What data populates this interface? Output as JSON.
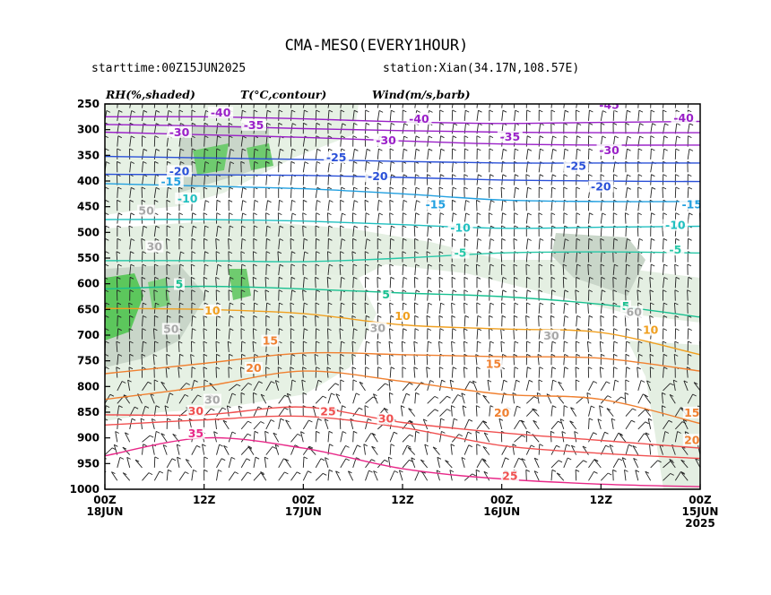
{
  "header": {
    "title": "CMA-MESO(EVERY1HOUR)",
    "starttime": "starttime:00Z15JUN2025",
    "station": "station:Xian(34.17N,108.57E)"
  },
  "legend": {
    "rh": "RH(%,shaded)",
    "temp": "T(°C,contour)",
    "wind": "Wind(m/s,barb)"
  },
  "chart_data": {
    "type": "time-height cross section",
    "y_axis": {
      "ticks": [
        "250",
        "300",
        "350",
        "400",
        "450",
        "500",
        "550",
        "600",
        "650",
        "700",
        "750",
        "800",
        "850",
        "900",
        "950",
        "1000"
      ],
      "range": [
        250,
        1000
      ],
      "reversed": true
    },
    "x_axis": {
      "range_hours": [
        72,
        0
      ],
      "ticks": [
        {
          "hour": 72,
          "line1": "00Z",
          "line2": "18JUN",
          "line3": ""
        },
        {
          "hour": 60,
          "line1": "12Z",
          "line2": "",
          "line3": ""
        },
        {
          "hour": 48,
          "line1": "00Z",
          "line2": "17JUN",
          "line3": ""
        },
        {
          "hour": 36,
          "line1": "12Z",
          "line2": "",
          "line3": ""
        },
        {
          "hour": 24,
          "line1": "00Z",
          "line2": "16JUN",
          "line3": ""
        },
        {
          "hour": 12,
          "line1": "12Z",
          "line2": "",
          "line3": ""
        },
        {
          "hour": 0,
          "line1": "00Z",
          "line2": "15JUN",
          "line3": "2025"
        }
      ]
    },
    "temperature_contours": [
      {
        "level": -40,
        "color": "#9a20c8",
        "points": [
          [
            72,
            275
          ],
          [
            60,
            275
          ],
          [
            48,
            279
          ],
          [
            36,
            285
          ],
          [
            24,
            288
          ],
          [
            12,
            286
          ],
          [
            0,
            284
          ]
        ]
      },
      {
        "level": -35,
        "color": "#9a20c8",
        "points": [
          [
            72,
            290
          ],
          [
            60,
            293
          ],
          [
            48,
            298
          ],
          [
            36,
            302
          ],
          [
            24,
            305
          ],
          [
            12,
            306
          ],
          [
            0,
            306
          ]
        ]
      },
      {
        "level": -30,
        "color": "#9a20c8",
        "points": [
          [
            72,
            305
          ],
          [
            60,
            310
          ],
          [
            48,
            315
          ],
          [
            36,
            322
          ],
          [
            24,
            328
          ],
          [
            12,
            330
          ],
          [
            0,
            330
          ]
        ]
      },
      {
        "level": -25,
        "color": "#2a50d8",
        "points": [
          [
            72,
            352
          ],
          [
            60,
            355
          ],
          [
            48,
            358
          ],
          [
            36,
            362
          ],
          [
            24,
            365
          ],
          [
            12,
            365
          ],
          [
            0,
            365
          ]
        ]
      },
      {
        "level": -20,
        "color": "#2a50d8",
        "points": [
          [
            72,
            387
          ],
          [
            60,
            388
          ],
          [
            48,
            389
          ],
          [
            36,
            393
          ],
          [
            24,
            398
          ],
          [
            12,
            400
          ],
          [
            0,
            401
          ]
        ]
      },
      {
        "level": -15,
        "color": "#22a0e0",
        "points": [
          [
            72,
            405
          ],
          [
            60,
            410
          ],
          [
            48,
            415
          ],
          [
            36,
            425
          ],
          [
            24,
            437
          ],
          [
            12,
            440
          ],
          [
            0,
            440
          ]
        ]
      },
      {
        "level": -10,
        "color": "#20c0c0",
        "points": [
          [
            72,
            475
          ],
          [
            60,
            475
          ],
          [
            48,
            478
          ],
          [
            36,
            485
          ],
          [
            24,
            492
          ],
          [
            12,
            490
          ],
          [
            0,
            488
          ]
        ]
      },
      {
        "level": -5,
        "color": "#28c8a8",
        "points": [
          [
            72,
            555
          ],
          [
            60,
            555
          ],
          [
            48,
            557
          ],
          [
            36,
            550
          ],
          [
            24,
            540
          ],
          [
            12,
            538
          ],
          [
            0,
            540
          ]
        ]
      },
      {
        "level": 5,
        "color": "#18c090",
        "points": [
          [
            72,
            610
          ],
          [
            60,
            605
          ],
          [
            48,
            610
          ],
          [
            36,
            618
          ],
          [
            24,
            625
          ],
          [
            12,
            640
          ],
          [
            0,
            665
          ]
        ]
      },
      {
        "level": 10,
        "color": "#f0a020",
        "points": [
          [
            72,
            648
          ],
          [
            60,
            650
          ],
          [
            48,
            658
          ],
          [
            36,
            680
          ],
          [
            24,
            688
          ],
          [
            12,
            695
          ],
          [
            0,
            738
          ]
        ]
      },
      {
        "level": 15,
        "color": "#f08030",
        "points": [
          [
            72,
            775
          ],
          [
            60,
            755
          ],
          [
            48,
            735
          ],
          [
            36,
            738
          ],
          [
            24,
            742
          ],
          [
            12,
            745
          ],
          [
            0,
            770
          ]
        ]
      },
      {
        "level": 20,
        "color": "#f08030",
        "points": [
          [
            72,
            825
          ],
          [
            60,
            800
          ],
          [
            48,
            770
          ],
          [
            36,
            790
          ],
          [
            24,
            815
          ],
          [
            12,
            825
          ],
          [
            0,
            872
          ]
        ]
      },
      {
        "level": 25,
        "color": "#f05050",
        "points": [
          [
            72,
            855
          ],
          [
            60,
            855
          ],
          [
            48,
            840
          ],
          [
            36,
            870
          ],
          [
            24,
            890
          ],
          [
            12,
            905
          ],
          [
            0,
            920
          ]
        ]
      },
      {
        "level": 30,
        "color": "#f05050",
        "points": [
          [
            72,
            875
          ],
          [
            60,
            865
          ],
          [
            48,
            858
          ],
          [
            36,
            880
          ],
          [
            24,
            915
          ],
          [
            12,
            930
          ],
          [
            0,
            940
          ]
        ]
      },
      {
        "level": 35,
        "color": "#e82888",
        "points": [
          [
            72,
            935
          ],
          [
            60,
            900
          ],
          [
            48,
            920
          ],
          [
            36,
            960
          ],
          [
            24,
            980
          ],
          [
            12,
            990
          ],
          [
            0,
            995
          ]
        ]
      }
    ],
    "temperature_labels": [
      {
        "text": "-40",
        "hour": 58,
        "p": 271,
        "color": "#9a20c8"
      },
      {
        "text": "-40",
        "hour": 34,
        "p": 283,
        "color": "#9a20c8"
      },
      {
        "text": "-45",
        "hour": 11,
        "p": 256,
        "color": "#9a20c8"
      },
      {
        "text": "-40",
        "hour": 2,
        "p": 281,
        "color": "#9a20c8"
      },
      {
        "text": "-35",
        "hour": 54,
        "p": 295,
        "color": "#9a20c8"
      },
      {
        "text": "-35",
        "hour": 23,
        "p": 318,
        "color": "#9a20c8"
      },
      {
        "text": "-30",
        "hour": 63,
        "p": 309,
        "color": "#9a20c8"
      },
      {
        "text": "-30",
        "hour": 38,
        "p": 325,
        "color": "#9a20c8"
      },
      {
        "text": "-30",
        "hour": 11,
        "p": 344,
        "color": "#9a20c8"
      },
      {
        "text": "-25",
        "hour": 44,
        "p": 358,
        "color": "#2a50d8"
      },
      {
        "text": "-25",
        "hour": 15,
        "p": 375,
        "color": "#2a50d8"
      },
      {
        "text": "-20",
        "hour": 63,
        "p": 385,
        "color": "#2a50d8"
      },
      {
        "text": "-20",
        "hour": 39,
        "p": 395,
        "color": "#2a50d8"
      },
      {
        "text": "-20",
        "hour": 12,
        "p": 415,
        "color": "#2a50d8"
      },
      {
        "text": "-15",
        "hour": 64,
        "p": 405,
        "color": "#22a0e0"
      },
      {
        "text": "-15",
        "hour": 32,
        "p": 450,
        "color": "#22a0e0"
      },
      {
        "text": "-15",
        "hour": 1,
        "p": 450,
        "color": "#22a0e0"
      },
      {
        "text": "-10",
        "hour": 62,
        "p": 438,
        "color": "#20c0c0"
      },
      {
        "text": "-10",
        "hour": 29,
        "p": 495,
        "color": "#20c0c0"
      },
      {
        "text": "-10",
        "hour": 3,
        "p": 490,
        "color": "#20c0c0"
      },
      {
        "text": "-5",
        "hour": 29,
        "p": 544,
        "color": "#28c8a8"
      },
      {
        "text": "-5",
        "hour": 3,
        "p": 538,
        "color": "#28c8a8"
      },
      {
        "text": "5",
        "hour": 63,
        "p": 605,
        "color": "#18c090"
      },
      {
        "text": "5",
        "hour": 38,
        "p": 625,
        "color": "#18c090"
      },
      {
        "text": "5",
        "hour": 9,
        "p": 648,
        "color": "#18c090"
      },
      {
        "text": "10",
        "hour": 59,
        "p": 656,
        "color": "#f0a020"
      },
      {
        "text": "10",
        "hour": 36,
        "p": 667,
        "color": "#f0a020"
      },
      {
        "text": "10",
        "hour": 6,
        "p": 694,
        "color": "#f0a020"
      },
      {
        "text": "15",
        "hour": 52,
        "p": 715,
        "color": "#f08030"
      },
      {
        "text": "15",
        "hour": 25,
        "p": 760,
        "color": "#f08030"
      },
      {
        "text": "15",
        "hour": 1,
        "p": 855,
        "color": "#f08030"
      },
      {
        "text": "20",
        "hour": 54,
        "p": 768,
        "color": "#f08030"
      },
      {
        "text": "20",
        "hour": 24,
        "p": 855,
        "color": "#f08030"
      },
      {
        "text": "20",
        "hour": 1,
        "p": 908,
        "color": "#f08030"
      },
      {
        "text": "25",
        "hour": 45,
        "p": 853,
        "color": "#f05050"
      },
      {
        "text": "25",
        "hour": 23,
        "p": 978,
        "color": "#f05050"
      },
      {
        "text": "30",
        "hour": 61,
        "p": 852,
        "color": "#f05050"
      },
      {
        "text": "30",
        "hour": 38,
        "p": 867,
        "color": "#f05050"
      },
      {
        "text": "35",
        "hour": 61,
        "p": 895,
        "color": "#e82888"
      },
      {
        "text": "30",
        "hour": 39,
        "p": 690,
        "color": "#a8a8a8"
      },
      {
        "text": "30",
        "hour": 66,
        "p": 532,
        "color": "#a8a8a8"
      },
      {
        "text": "30",
        "hour": 18,
        "p": 705,
        "color": "#a8a8a8"
      },
      {
        "text": "50",
        "hour": 67,
        "p": 462,
        "color": "#a8a8a8"
      },
      {
        "text": "50",
        "hour": 64,
        "p": 692,
        "color": "#a8a8a8"
      },
      {
        "text": "60",
        "hour": 8,
        "p": 659,
        "color": "#a8a8a8"
      },
      {
        "text": "30",
        "hour": 59,
        "p": 830,
        "color": "#a8a8a8"
      }
    ],
    "rh_shading_levels": [
      30,
      50,
      70,
      90
    ],
    "wind_barbs": "dense barb field at every hour and pressure level (not individually labeled)"
  }
}
